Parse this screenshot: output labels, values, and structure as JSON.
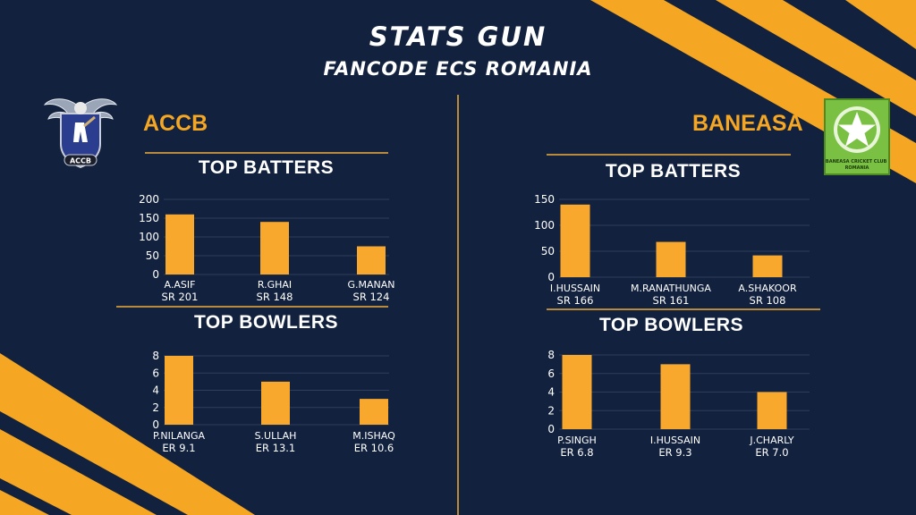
{
  "header": {
    "title": "STATS GUN",
    "subtitle": "FANCODE ECS ROMANIA"
  },
  "colors": {
    "background": "#12213d",
    "accent": "#f5a623",
    "bar": "#f9a82e",
    "grid": "#2e3d5c",
    "divider": "#b88a3c"
  },
  "teams": [
    {
      "name": "ACCB",
      "logo": {
        "icon": "accb-eagle-crest-logo",
        "text": "ACCB"
      },
      "batters_title": "TOP BATTERS",
      "bowlers_title": "TOP BOWLERS"
    },
    {
      "name": "BANEASA",
      "logo": {
        "icon": "baneasa-star-logo",
        "text": "BANEASA CRICKET CLUB ROMANIA"
      },
      "batters_title": "TOP BATTERS",
      "bowlers_title": "TOP BOWLERS"
    }
  ],
  "chart_data": [
    {
      "type": "bar",
      "team": "ACCB",
      "title": "TOP BATTERS",
      "categories": [
        "A.ASIF",
        "R.GHAI",
        "G.MANAN"
      ],
      "sublabels": [
        "SR 201",
        "SR 148",
        "SR 124"
      ],
      "values": [
        160,
        140,
        75
      ],
      "ylim": [
        0,
        200
      ],
      "yticks": [
        0,
        50,
        100,
        150,
        200
      ],
      "grid": true
    },
    {
      "type": "bar",
      "team": "ACCB",
      "title": "TOP BOWLERS",
      "categories": [
        "P.NILANGA",
        "S.ULLAH",
        "M.ISHAQ"
      ],
      "sublabels": [
        "ER 9.1",
        "ER 13.1",
        "ER 10.6"
      ],
      "values": [
        8,
        5,
        3
      ],
      "ylim": [
        0,
        8
      ],
      "yticks": [
        0,
        2,
        4,
        6,
        8
      ],
      "grid": true
    },
    {
      "type": "bar",
      "team": "BANEASA",
      "title": "TOP BATTERS",
      "categories": [
        "I.HUSSAIN",
        "M.RANATHUNGA",
        "A.SHAKOOR"
      ],
      "sublabels": [
        "SR 166",
        "SR 161",
        "SR 108"
      ],
      "values": [
        140,
        68,
        42
      ],
      "ylim": [
        0,
        150
      ],
      "yticks": [
        0,
        50,
        100,
        150
      ],
      "grid": true
    },
    {
      "type": "bar",
      "team": "BANEASA",
      "title": "TOP BOWLERS",
      "categories": [
        "P.SINGH",
        "I.HUSSAIN",
        "J.CHARLY"
      ],
      "sublabels": [
        "ER 6.8",
        "ER 9.3",
        "ER 7.0"
      ],
      "values": [
        8,
        7,
        4
      ],
      "ylim": [
        0,
        8
      ],
      "yticks": [
        0,
        2,
        4,
        6,
        8
      ],
      "grid": true
    }
  ]
}
